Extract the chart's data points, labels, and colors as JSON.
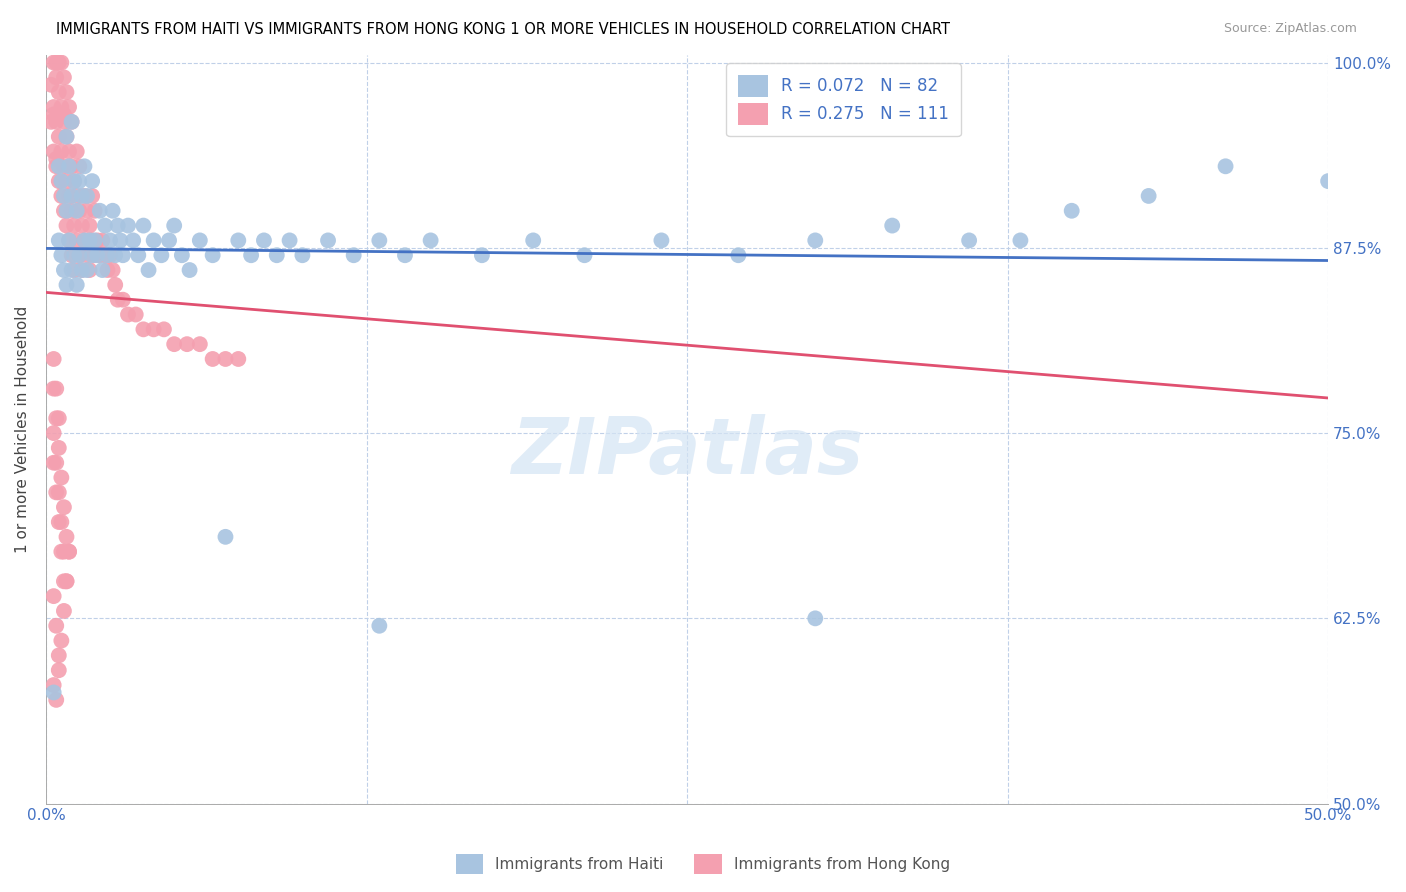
{
  "title": "IMMIGRANTS FROM HAITI VS IMMIGRANTS FROM HONG KONG 1 OR MORE VEHICLES IN HOUSEHOLD CORRELATION CHART",
  "source": "Source: ZipAtlas.com",
  "ylabel": "1 or more Vehicles in Household",
  "legend_label_haiti": "Immigrants from Haiti",
  "legend_label_hk": "Immigrants from Hong Kong",
  "R_haiti": 0.072,
  "N_haiti": 82,
  "R_hk": 0.275,
  "N_hk": 111,
  "xmin": 0.0,
  "xmax": 0.5,
  "ymin": 0.5,
  "ymax": 1.005,
  "color_haiti": "#a8c4e0",
  "color_hk": "#f4a0b0",
  "line_color_haiti": "#4472c4",
  "line_color_hk": "#e05070",
  "tick_color": "#4472c4",
  "grid_color": "#c0d0e8",
  "haiti_x": [
    0.003,
    0.005,
    0.005,
    0.006,
    0.006,
    0.007,
    0.007,
    0.008,
    0.008,
    0.008,
    0.009,
    0.009,
    0.01,
    0.01,
    0.01,
    0.011,
    0.011,
    0.012,
    0.012,
    0.013,
    0.013,
    0.014,
    0.014,
    0.015,
    0.015,
    0.016,
    0.016,
    0.017,
    0.018,
    0.018,
    0.019,
    0.02,
    0.021,
    0.022,
    0.023,
    0.024,
    0.025,
    0.026,
    0.027,
    0.028,
    0.029,
    0.03,
    0.032,
    0.034,
    0.036,
    0.038,
    0.04,
    0.042,
    0.045,
    0.048,
    0.05,
    0.053,
    0.056,
    0.06,
    0.065,
    0.07,
    0.075,
    0.08,
    0.085,
    0.09,
    0.095,
    0.1,
    0.11,
    0.12,
    0.13,
    0.14,
    0.15,
    0.17,
    0.19,
    0.21,
    0.24,
    0.27,
    0.3,
    0.33,
    0.36,
    0.4,
    0.43,
    0.46,
    0.38,
    0.5,
    0.13,
    0.3
  ],
  "haiti_y": [
    0.575,
    0.88,
    0.93,
    0.87,
    0.92,
    0.86,
    0.91,
    0.85,
    0.9,
    0.95,
    0.88,
    0.93,
    0.86,
    0.91,
    0.96,
    0.87,
    0.92,
    0.85,
    0.9,
    0.87,
    0.92,
    0.86,
    0.91,
    0.88,
    0.93,
    0.86,
    0.91,
    0.88,
    0.87,
    0.92,
    0.88,
    0.87,
    0.9,
    0.86,
    0.89,
    0.87,
    0.88,
    0.9,
    0.87,
    0.89,
    0.88,
    0.87,
    0.89,
    0.88,
    0.87,
    0.89,
    0.86,
    0.88,
    0.87,
    0.88,
    0.89,
    0.87,
    0.86,
    0.88,
    0.87,
    0.68,
    0.88,
    0.87,
    0.88,
    0.87,
    0.88,
    0.87,
    0.88,
    0.87,
    0.88,
    0.87,
    0.88,
    0.87,
    0.88,
    0.87,
    0.88,
    0.87,
    0.88,
    0.89,
    0.88,
    0.9,
    0.91,
    0.93,
    0.88,
    0.92,
    0.62,
    0.625
  ],
  "hk_x": [
    0.002,
    0.002,
    0.003,
    0.003,
    0.003,
    0.003,
    0.004,
    0.004,
    0.004,
    0.004,
    0.004,
    0.005,
    0.005,
    0.005,
    0.005,
    0.005,
    0.006,
    0.006,
    0.006,
    0.006,
    0.006,
    0.007,
    0.007,
    0.007,
    0.007,
    0.007,
    0.008,
    0.008,
    0.008,
    0.008,
    0.009,
    0.009,
    0.009,
    0.009,
    0.01,
    0.01,
    0.01,
    0.01,
    0.011,
    0.011,
    0.011,
    0.012,
    0.012,
    0.012,
    0.013,
    0.013,
    0.013,
    0.014,
    0.014,
    0.015,
    0.015,
    0.016,
    0.016,
    0.017,
    0.017,
    0.018,
    0.018,
    0.019,
    0.019,
    0.02,
    0.021,
    0.022,
    0.023,
    0.024,
    0.025,
    0.026,
    0.027,
    0.028,
    0.03,
    0.032,
    0.035,
    0.038,
    0.042,
    0.046,
    0.05,
    0.055,
    0.06,
    0.065,
    0.07,
    0.075,
    0.003,
    0.004,
    0.005,
    0.006,
    0.007,
    0.008,
    0.009,
    0.003,
    0.004,
    0.005,
    0.006,
    0.007,
    0.003,
    0.004,
    0.005,
    0.003,
    0.004,
    0.005,
    0.006,
    0.007,
    0.008,
    0.009,
    0.003,
    0.004,
    0.005,
    0.006,
    0.007,
    0.008,
    0.003,
    0.004,
    0.005
  ],
  "hk_y": [
    0.96,
    0.985,
    0.94,
    0.97,
    1.0,
    0.965,
    0.93,
    0.96,
    0.99,
    1.0,
    0.935,
    0.92,
    0.95,
    0.98,
    1.0,
    0.965,
    0.91,
    0.94,
    0.97,
    1.0,
    0.965,
    0.9,
    0.93,
    0.96,
    0.99,
    0.965,
    0.89,
    0.92,
    0.95,
    0.98,
    0.88,
    0.91,
    0.94,
    0.97,
    0.87,
    0.9,
    0.93,
    0.96,
    0.86,
    0.89,
    0.92,
    0.88,
    0.91,
    0.94,
    0.87,
    0.9,
    0.93,
    0.86,
    0.89,
    0.88,
    0.91,
    0.87,
    0.9,
    0.86,
    0.89,
    0.88,
    0.91,
    0.87,
    0.9,
    0.88,
    0.87,
    0.88,
    0.87,
    0.86,
    0.87,
    0.86,
    0.85,
    0.84,
    0.84,
    0.83,
    0.83,
    0.82,
    0.82,
    0.82,
    0.81,
    0.81,
    0.81,
    0.8,
    0.8,
    0.8,
    0.78,
    0.76,
    0.74,
    0.72,
    0.7,
    0.68,
    0.67,
    0.73,
    0.71,
    0.69,
    0.67,
    0.65,
    0.64,
    0.62,
    0.6,
    0.58,
    0.57,
    0.59,
    0.61,
    0.63,
    0.65,
    0.67,
    0.75,
    0.73,
    0.71,
    0.69,
    0.67,
    0.65,
    0.8,
    0.78,
    0.76
  ]
}
